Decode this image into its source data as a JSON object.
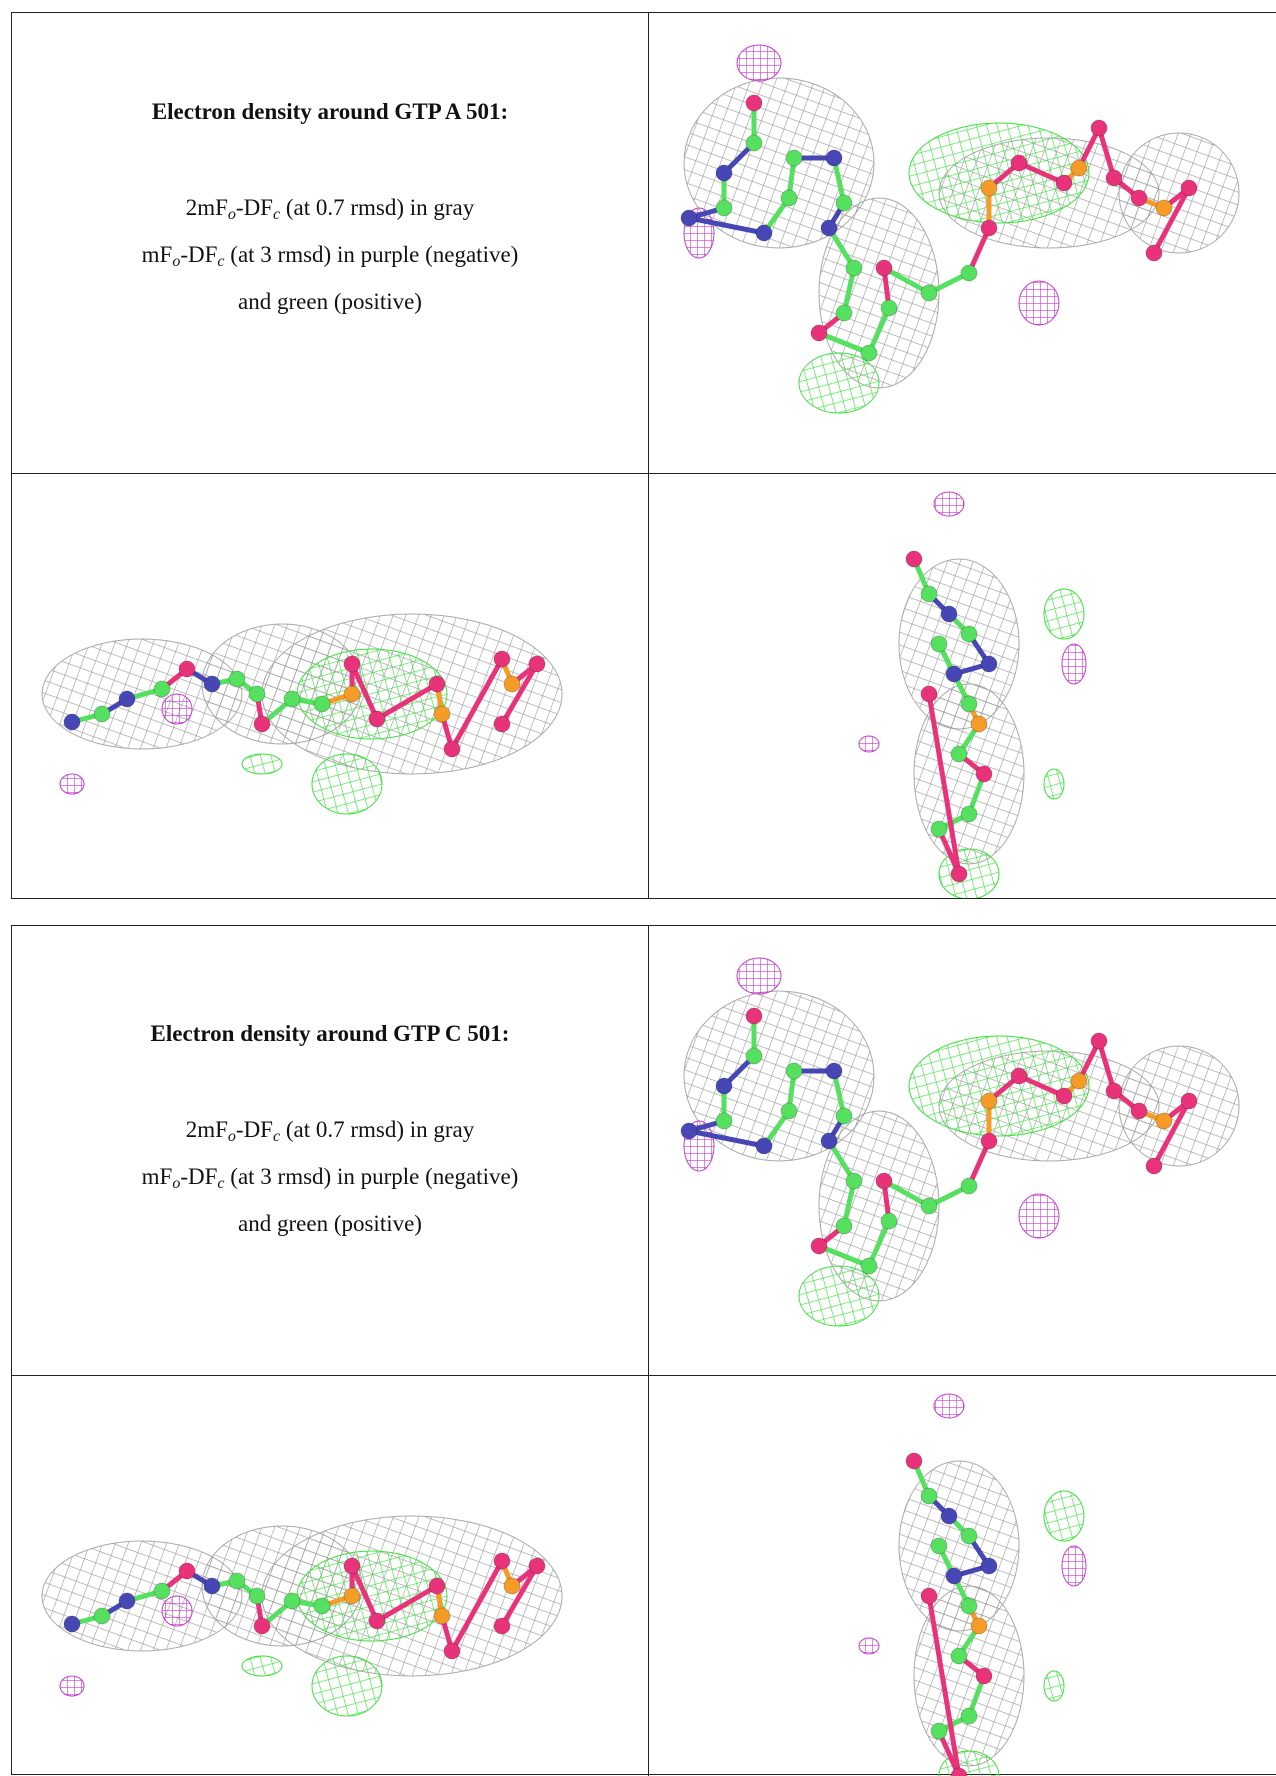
{
  "panels": [
    {
      "title": "Electron density around GTP A 501:",
      "lines": [
        {
          "parts": [
            "2mF",
            "o",
            "-DF",
            "c",
            " (at 0.7 rmsd) in gray"
          ]
        },
        {
          "parts": [
            "mF",
            "o",
            "-DF",
            "c",
            " (at 3 rmsd) in purple (negative)"
          ]
        },
        {
          "parts": [
            "and green (positive)"
          ]
        }
      ]
    },
    {
      "title": "Electron density around GTP C 501:",
      "lines": [
        {
          "parts": [
            "2mF",
            "o",
            "-DF",
            "c",
            " (at 0.7 rmsd) in gray"
          ]
        },
        {
          "parts": [
            "mF",
            "o",
            "-DF",
            "c",
            " (at 3 rmsd) in purple (negative)"
          ]
        },
        {
          "parts": [
            "and green (positive)"
          ]
        }
      ]
    }
  ]
}
